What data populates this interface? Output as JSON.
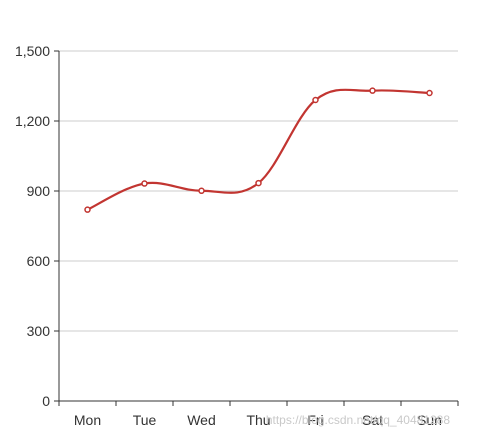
{
  "chart_data": {
    "type": "line",
    "categories": [
      "Mon",
      "Tue",
      "Wed",
      "Thu",
      "Fri",
      "Sat",
      "Sun"
    ],
    "series": [
      {
        "values": [
          820,
          932,
          901,
          934,
          1290,
          1330,
          1320
        ],
        "color": "#c23531",
        "smooth": true
      }
    ],
    "ylim": [
      0,
      1500
    ],
    "yticks": [
      "0",
      "300",
      "600",
      "900",
      "1,200",
      "1,500"
    ],
    "grid": true
  },
  "watermark": "https://blog.csdn.net/qq_40481288"
}
